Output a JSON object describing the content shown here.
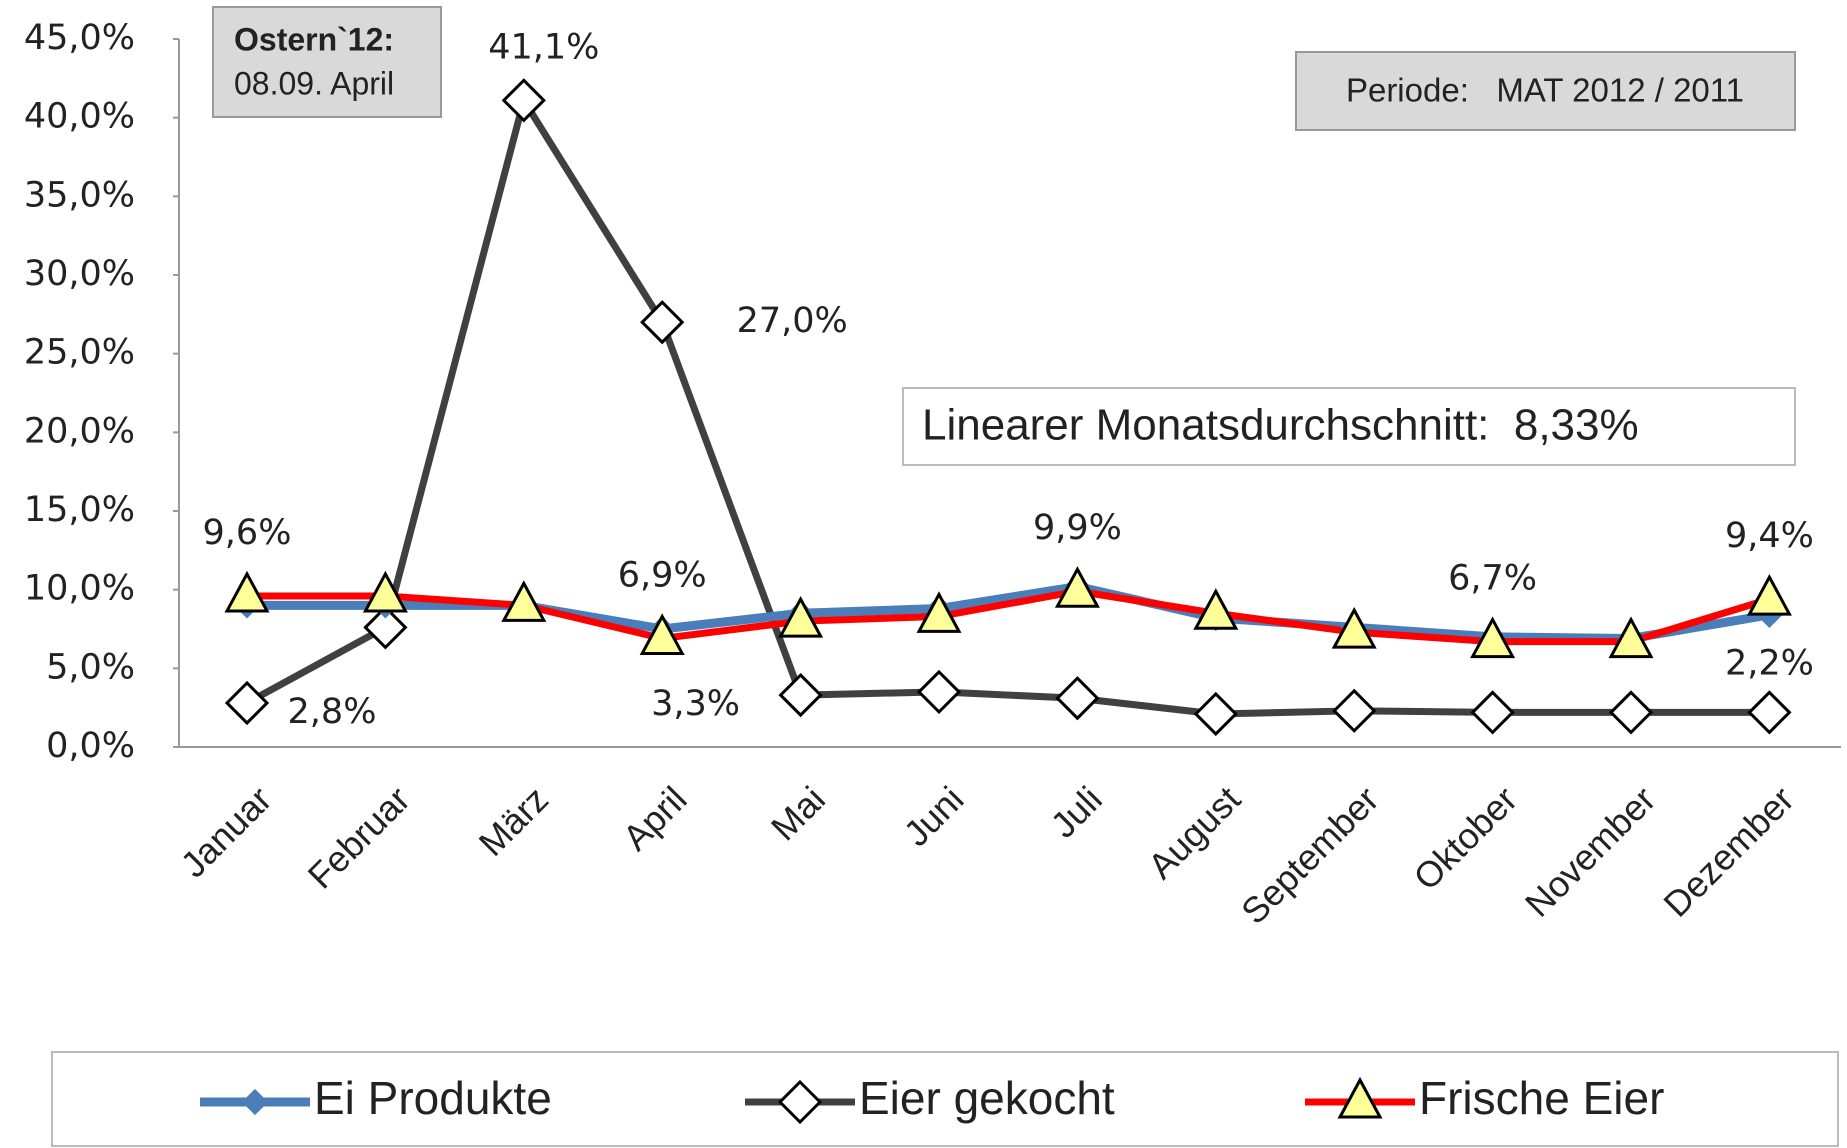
{
  "chart_data": {
    "type": "line",
    "categories": [
      "Januar",
      "Februar",
      "März",
      "April",
      "Mai",
      "Juni",
      "Juli",
      "August",
      "September",
      "Oktober",
      "November",
      "Dezember"
    ],
    "series": [
      {
        "name": "Ei Produkte",
        "color": "#4a7ebb",
        "marker": "diamond",
        "values": [
          9.0,
          9.0,
          9.0,
          7.5,
          8.5,
          8.8,
          10.2,
          8.2,
          7.6,
          7.0,
          6.9,
          8.4
        ]
      },
      {
        "name": "Eier gekocht",
        "color": "#404040",
        "marker": "diamond-open",
        "values": [
          2.8,
          7.6,
          41.1,
          27.0,
          3.3,
          3.5,
          3.1,
          2.1,
          2.3,
          2.2,
          2.2,
          2.2
        ],
        "value_labels": [
          "2,8%",
          null,
          "41,1%",
          "27,0%",
          "3,3%",
          null,
          null,
          null,
          null,
          null,
          null,
          "2,2%"
        ]
      },
      {
        "name": "Frische Eier",
        "color": "#ff0000",
        "marker": "triangle",
        "values": [
          9.6,
          9.6,
          9.0,
          6.9,
          8.0,
          8.3,
          9.9,
          8.5,
          7.3,
          6.7,
          6.7,
          9.4
        ],
        "value_labels": [
          "9,6%",
          null,
          null,
          "6,9%",
          null,
          null,
          "9,9%",
          null,
          null,
          "6,7%",
          null,
          "9,4%"
        ]
      }
    ],
    "ylim": [
      0,
      45
    ],
    "yticks": [
      {
        "value": 0,
        "label": "0,0%"
      },
      {
        "value": 5,
        "label": "5,0%"
      },
      {
        "value": 10,
        "label": "10,0%"
      },
      {
        "value": 15,
        "label": "15,0%"
      },
      {
        "value": 20,
        "label": "20,0%"
      },
      {
        "value": 25,
        "label": "25,0%"
      },
      {
        "value": 30,
        "label": "30,0%"
      },
      {
        "value": 35,
        "label": "35,0%"
      },
      {
        "value": 40,
        "label": "40,0%"
      },
      {
        "value": 45,
        "label": "45,0%"
      }
    ],
    "grid": false,
    "annotations": {
      "easter_title": "Ostern`12:",
      "easter_date": "08.09. April",
      "period": "Periode:   MAT 2012 / 2011",
      "average": "Linearer Monatsdurchschnitt:  8,33%"
    },
    "legend": "bottom"
  }
}
